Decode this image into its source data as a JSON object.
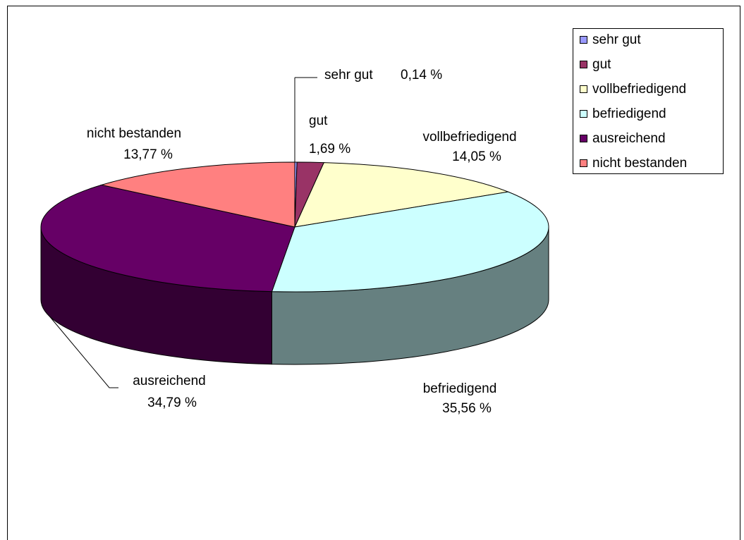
{
  "chart_data": {
    "type": "pie3d",
    "categories": [
      "sehr gut",
      "gut",
      "vollbefriedigend",
      "befriedigend",
      "ausreichend",
      "nicht bestanden"
    ],
    "values": [
      0.14,
      1.69,
      14.05,
      35.56,
      34.79,
      13.77
    ],
    "value_labels": [
      "0,14 %",
      "1,69 %",
      "14,05 %",
      "35,56 %",
      "34,79 %",
      "13,77 %"
    ],
    "colors": [
      "#9999ff",
      "#993366",
      "#ffffcc",
      "#ccffff",
      "#660066",
      "#ff8080"
    ],
    "legend": "top-right"
  }
}
